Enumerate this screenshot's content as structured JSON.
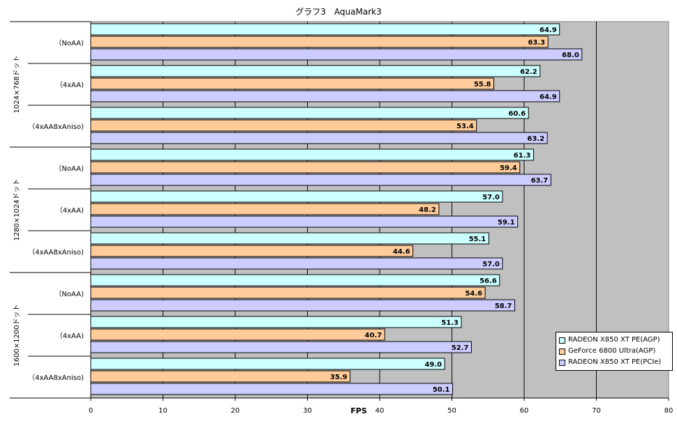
{
  "chart_data": {
    "type": "bar",
    "orientation": "horizontal",
    "title": "グラフ3　AquaMark3",
    "xlabel": "FPS",
    "xlim": [
      0,
      80
    ],
    "xticks": [
      0,
      10,
      20,
      30,
      40,
      50,
      60,
      70,
      80
    ],
    "grid": true,
    "legend_position": "bottom-right",
    "groups": [
      "1024×768ドット",
      "1280×1024ドット",
      "1600×1200ドット"
    ],
    "settings": [
      "（NoAA)",
      "（4xAA)",
      "（4xAA8xAniso)"
    ],
    "series": [
      {
        "name": "RADEON X850 XT PE(AGP)",
        "color": "#ccffff",
        "values": [
          64.9,
          62.2,
          60.6,
          61.3,
          57.0,
          55.1,
          56.6,
          51.3,
          49.0
        ]
      },
      {
        "name": "GeForce 6800 Ultra(AGP)",
        "color": "#ffcc99",
        "values": [
          63.3,
          55.8,
          53.4,
          59.4,
          48.2,
          44.6,
          54.6,
          40.7,
          35.9
        ]
      },
      {
        "name": "RADEON X850 XT PE(PCIe)",
        "color": "#ccccff",
        "values": [
          68.0,
          64.9,
          63.2,
          63.7,
          59.1,
          57.0,
          58.7,
          52.7,
          50.1
        ]
      }
    ]
  },
  "colors": {
    "plot_background": "#c0c0c0",
    "gridline": "#000000"
  }
}
